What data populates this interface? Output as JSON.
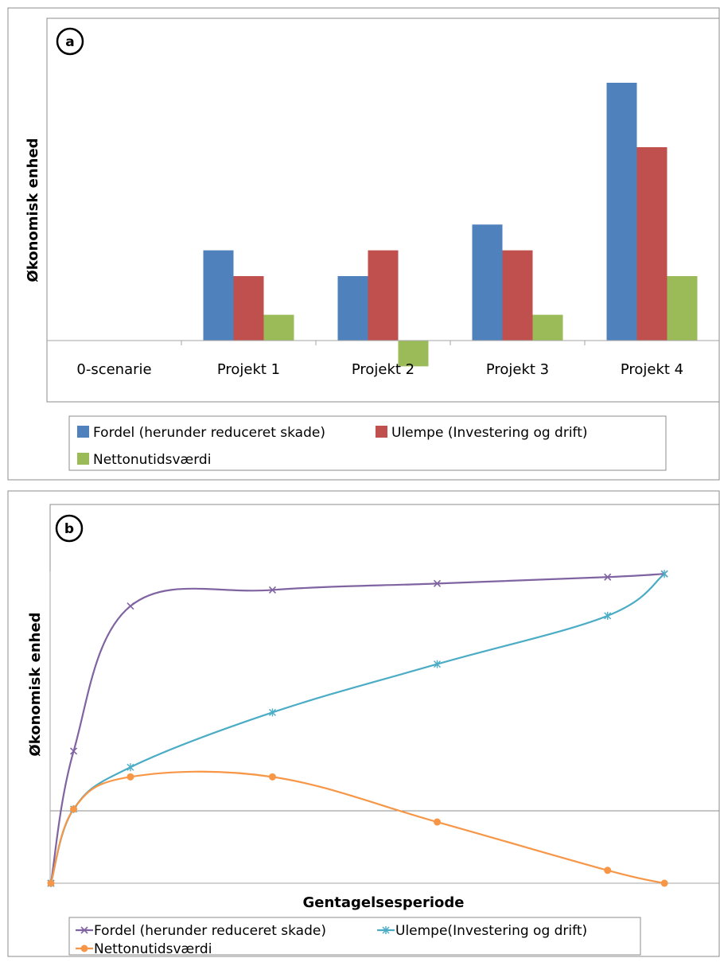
{
  "chart_data": [
    {
      "type": "bar",
      "panel_label": "a",
      "title": "",
      "xlabel": "",
      "ylabel": "Økonomisk enhed",
      "categories": [
        "0-scenarie",
        "Projekt 1",
        "Projekt 2",
        "Projekt 3",
        "Projekt 4"
      ],
      "ylim": [
        -1,
        10
      ],
      "y_ticks_shown": false,
      "grid": false,
      "legend_position": "bottom",
      "series": [
        {
          "name": "Fordel (herunder reduceret skade)",
          "color": "#4f81bd",
          "values": [
            0,
            3.5,
            2.5,
            4.5,
            10
          ]
        },
        {
          "name": "Ulempe (Investering og drift)",
          "color": "#c0504d",
          "values": [
            0,
            2.5,
            3.5,
            3.5,
            7.5
          ]
        },
        {
          "name": "Nettonutidsværdi",
          "color": "#9bbb59",
          "values": [
            0,
            1,
            -1,
            1,
            2.5
          ]
        }
      ]
    },
    {
      "type": "line",
      "panel_label": "b",
      "title": "",
      "xlabel": "Gentagelsesperiode",
      "ylabel": "Økonomisk enhed",
      "x": [
        0,
        0.4,
        1.4,
        3.9,
        6.8,
        9.8,
        10.8
      ],
      "ylim": [
        0,
        10
      ],
      "xlim": [
        0,
        11.5
      ],
      "ticks_shown": false,
      "grid": false,
      "legend_position": "bottom",
      "series": [
        {
          "name": "Fordel (herunder reduceret skade)",
          "color": "#8064a2",
          "marker": "x",
          "values": [
            0,
            4.1,
            8.6,
            9.1,
            9.3,
            9.5,
            9.6
          ]
        },
        {
          "name": "Ulempe(Investering og drift)",
          "color": "#4bacc6",
          "marker": "star",
          "values": [
            0,
            2.3,
            3.6,
            5.3,
            6.8,
            8.3,
            9.6
          ]
        },
        {
          "name": "Nettonutidsværdi",
          "color": "#f79646",
          "marker": "circle",
          "values": [
            0,
            2.3,
            3.3,
            3.3,
            1.9,
            0.4,
            0
          ]
        }
      ]
    }
  ]
}
